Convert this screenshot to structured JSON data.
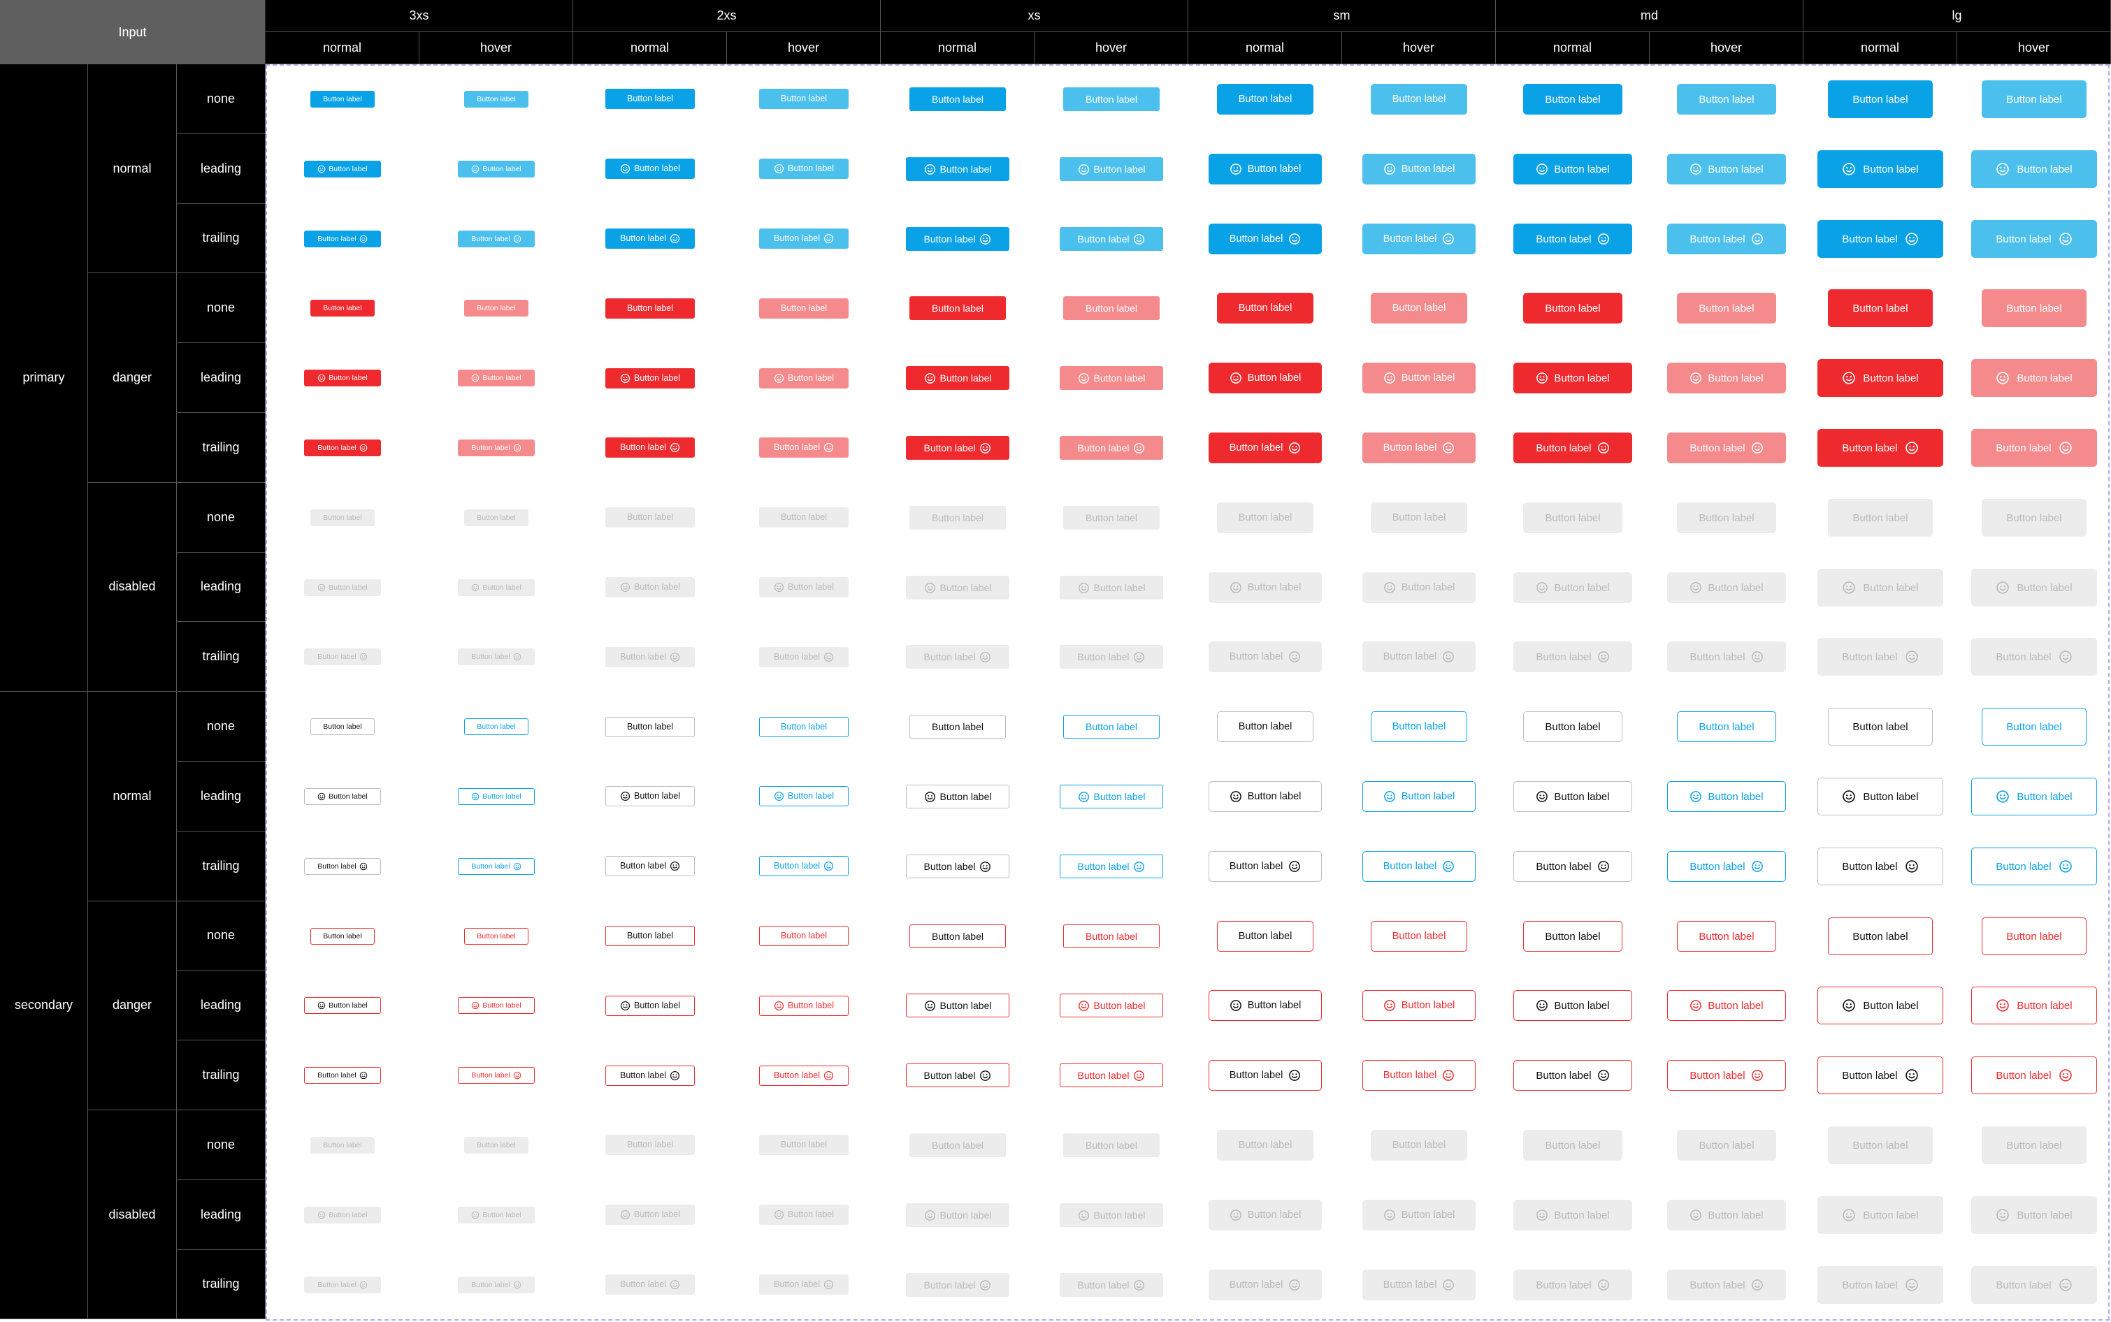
{
  "header": {
    "title": "Input",
    "sizes": [
      "3xs",
      "2xs",
      "xs",
      "sm",
      "md",
      "lg"
    ],
    "states": [
      "normal",
      "hover"
    ]
  },
  "rows": {
    "variants": [
      {
        "label": "primary",
        "intents": [
          "normal",
          "danger",
          "disabled"
        ]
      },
      {
        "label": "secondary",
        "intents": [
          "normal",
          "danger",
          "disabled"
        ]
      }
    ],
    "icon_positions": [
      "none",
      "leading",
      "trailing"
    ]
  },
  "button": {
    "label": "Button label",
    "icon": "smiley-icon"
  },
  "colors": {
    "primary_blue": "#0aa2e6",
    "primary_blue_hover": "#4cc0ed",
    "primary_red": "#ee2a2e",
    "primary_red_hover": "#f58a8c",
    "disabled_bg": "#ececec",
    "disabled_text": "#b9b9b9",
    "secondary_text": "#111111",
    "header_bg": "#000000",
    "corner_bg": "#5f5f5f"
  }
}
